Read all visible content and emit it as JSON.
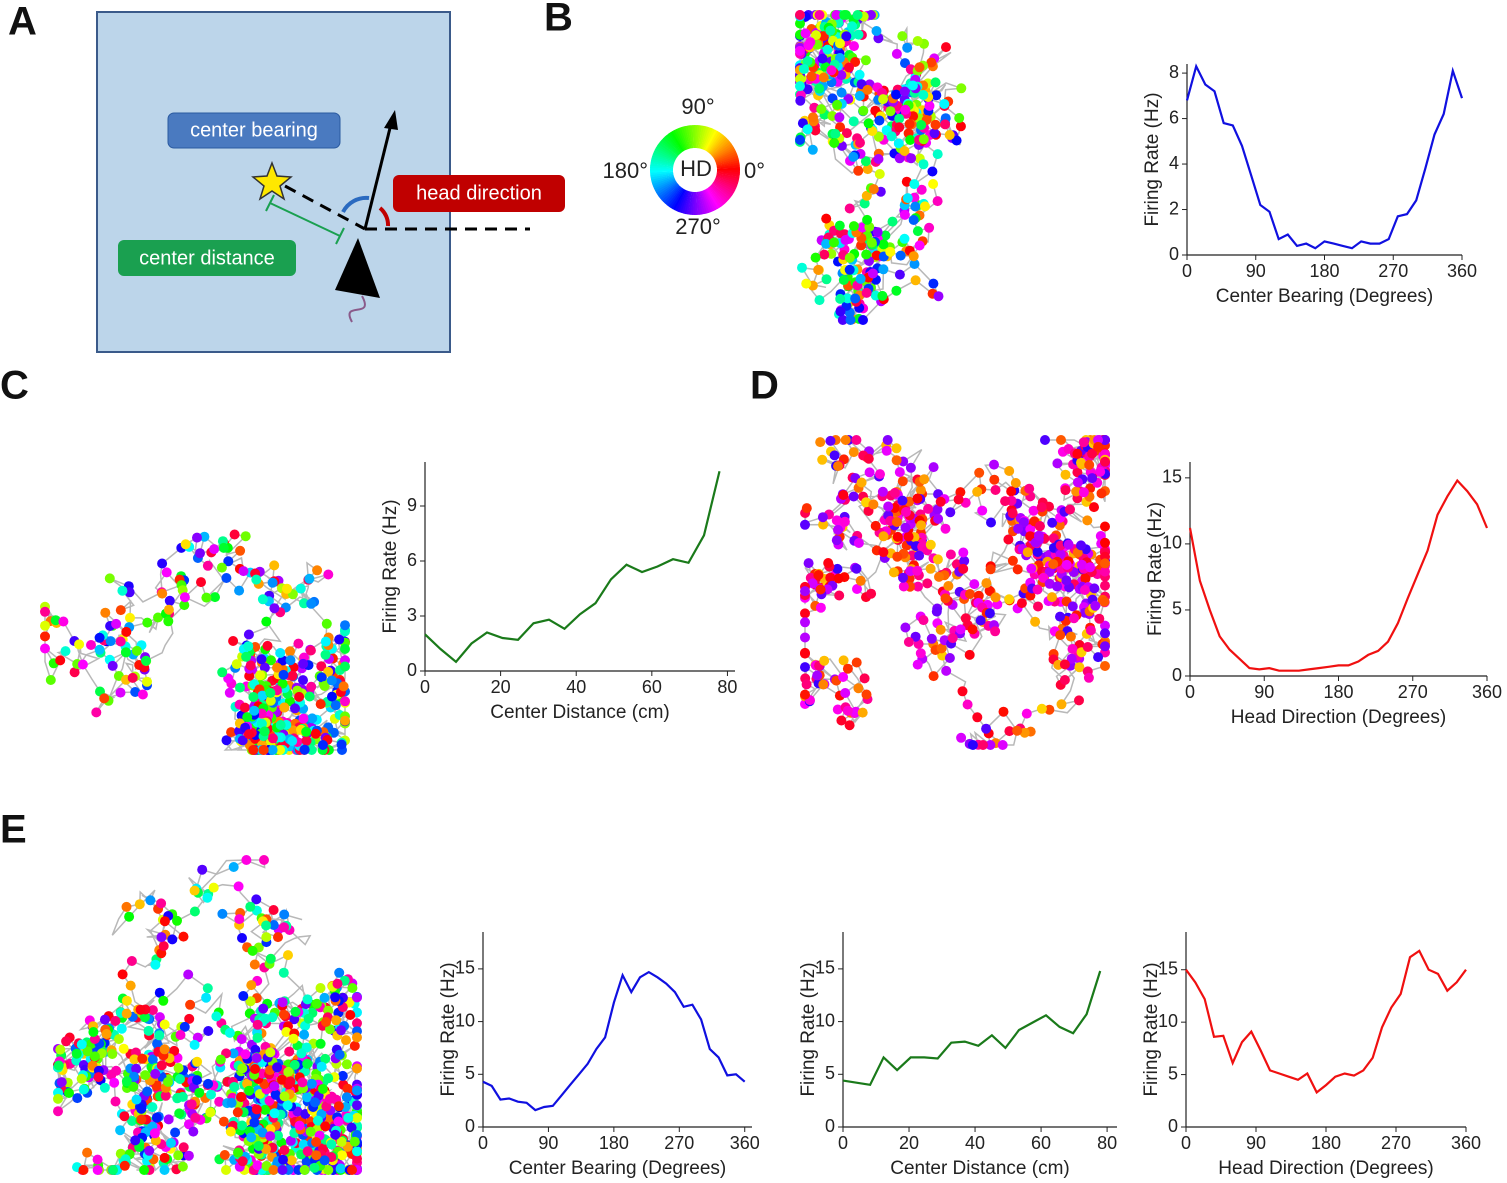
{
  "panel_labels": [
    "A",
    "B",
    "C",
    "D",
    "E"
  ],
  "diagram": {
    "center_bearing": "center bearing",
    "head_direction": "head direction",
    "center_distance": "center distance"
  },
  "hd_wheel": {
    "center": "HD",
    "label_90": "90°",
    "label_180": "180°",
    "label_0": "0°",
    "label_270": "270°"
  },
  "chart_data": [
    {
      "type": "line",
      "xlabel": "Center Bearing (Degrees)",
      "ylabel": "Firing Rate (Hz)",
      "color": "#1010e0",
      "x": [
        0,
        12,
        24,
        36,
        48,
        60,
        72,
        84,
        96,
        108,
        120,
        132,
        144,
        156,
        168,
        180,
        192,
        204,
        216,
        228,
        240,
        252,
        264,
        276,
        288,
        300,
        312,
        324,
        336,
        348,
        360
      ],
      "values": [
        6.8,
        8.3,
        7.5,
        7.2,
        5.8,
        5.7,
        4.8,
        3.5,
        2.2,
        1.9,
        0.7,
        0.9,
        0.4,
        0.5,
        0.3,
        0.6,
        0.5,
        0.4,
        0.3,
        0.6,
        0.5,
        0.5,
        0.7,
        1.7,
        1.8,
        2.4,
        3.8,
        5.3,
        6.2,
        8.1,
        6.9
      ],
      "xlim": [
        0,
        360
      ],
      "ylim": [
        0,
        8.4
      ],
      "xticks": [
        0,
        90,
        180,
        270,
        360
      ],
      "yticks": [
        0,
        2,
        4,
        6,
        8
      ]
    },
    {
      "type": "line",
      "xlabel": "Center Distance (cm)",
      "ylabel": "Firing Rate (Hz)",
      "color": "#1a7a1a",
      "x": [
        0,
        4.1,
        8.2,
        12.3,
        16.4,
        20.5,
        24.6,
        28.7,
        32.8,
        36.9,
        41,
        45.1,
        49.2,
        53.3,
        57.4,
        61.5,
        65.6,
        69.7,
        73.8,
        77.9
      ],
      "values": [
        2.0,
        1.2,
        0.5,
        1.5,
        2.1,
        1.8,
        1.7,
        2.6,
        2.8,
        2.3,
        3.1,
        3.7,
        5.0,
        5.8,
        5.4,
        5.7,
        6.1,
        5.9,
        7.4,
        10.9
      ],
      "xlim": [
        0,
        82
      ],
      "ylim": [
        0,
        11.4
      ],
      "xticks": [
        0,
        20,
        40,
        60,
        80
      ],
      "yticks": [
        0,
        3,
        6,
        9
      ]
    },
    {
      "type": "line",
      "xlabel": "Head Direction (Degrees)",
      "ylabel": "Firing Rate (Hz)",
      "color": "#f01010",
      "x": [
        0,
        12,
        24,
        36,
        48,
        60,
        72,
        84,
        96,
        108,
        120,
        132,
        144,
        156,
        168,
        180,
        192,
        204,
        216,
        228,
        240,
        252,
        264,
        276,
        288,
        300,
        312,
        324,
        336,
        348,
        360
      ],
      "values": [
        11.2,
        7.2,
        5,
        3,
        2,
        1.3,
        0.6,
        0.5,
        0.6,
        0.4,
        0.4,
        0.4,
        0.5,
        0.6,
        0.7,
        0.8,
        0.8,
        1.1,
        1.6,
        1.9,
        2.6,
        4,
        5.9,
        7.7,
        9.5,
        12.2,
        13.6,
        14.8,
        14,
        13,
        11.2
      ],
      "xlim": [
        0,
        360
      ],
      "ylim": [
        0,
        16.2
      ],
      "xticks": [
        0,
        90,
        180,
        270,
        360
      ],
      "yticks": [
        0,
        5,
        10,
        15
      ]
    },
    {
      "type": "line",
      "xlabel": "Center Bearing (Degrees)",
      "ylabel": "Firing Rate (Hz)",
      "color": "#1010e0",
      "x": [
        0,
        12,
        24,
        36,
        48,
        60,
        72,
        84,
        96,
        108,
        120,
        132,
        144,
        156,
        168,
        180,
        192,
        204,
        216,
        228,
        240,
        252,
        264,
        276,
        288,
        300,
        312,
        324,
        336,
        348,
        360
      ],
      "values": [
        4.3,
        3.9,
        2.6,
        2.7,
        2.4,
        2.3,
        1.6,
        1.9,
        2.0,
        3.0,
        4.0,
        5,
        6,
        7.4,
        8.5,
        11.8,
        14.4,
        12.8,
        14.2,
        14.7,
        14.2,
        13.6,
        12.8,
        11.4,
        11.6,
        10.2,
        7.4,
        6.6,
        4.9,
        5.0,
        4.3
      ],
      "xlim": [
        0,
        370
      ],
      "ylim": [
        0,
        18.5
      ],
      "xticks": [
        0,
        90,
        180,
        270,
        360
      ],
      "yticks": [
        0,
        5,
        10,
        15
      ]
    },
    {
      "type": "line",
      "xlabel": "Center Distance (cm)",
      "ylabel": "Firing Rate (Hz)",
      "color": "#1a7a1a",
      "x": [
        0,
        4.1,
        8.2,
        12.3,
        16.4,
        20.5,
        24.6,
        28.7,
        32.8,
        36.9,
        41,
        45.1,
        49.2,
        53.3,
        57.4,
        61.5,
        65.6,
        69.7,
        73.8,
        77.9
      ],
      "values": [
        4.4,
        4.2,
        4.0,
        6.6,
        5.4,
        6.6,
        6.6,
        6.5,
        8.0,
        8.1,
        7.7,
        8.7,
        7.5,
        9.2,
        9.9,
        10.6,
        9.5,
        8.9,
        10.7,
        14.8
      ],
      "xlim": [
        0,
        83
      ],
      "ylim": [
        0,
        18.5
      ],
      "xticks": [
        0,
        20,
        40,
        60,
        80
      ],
      "yticks": [
        0,
        5,
        10,
        15
      ]
    },
    {
      "type": "line",
      "xlabel": "Head Direction (Degrees)",
      "ylabel": "Firing Rate (Hz)",
      "color": "#f01010",
      "x": [
        0,
        12,
        24,
        36,
        48,
        60,
        72,
        84,
        96,
        108,
        120,
        132,
        144,
        156,
        168,
        180,
        192,
        204,
        216,
        228,
        240,
        252,
        264,
        276,
        288,
        300,
        312,
        324,
        336,
        348,
        360
      ],
      "values": [
        15,
        13.8,
        12.2,
        8.6,
        8.7,
        6.1,
        8.1,
        9.1,
        7.3,
        5.4,
        5.1,
        4.8,
        4.5,
        5.1,
        3.3,
        4,
        4.8,
        5.1,
        4.9,
        5.4,
        6.6,
        9.5,
        11.4,
        12.7,
        16.2,
        16.8,
        15.0,
        14.6,
        13.0,
        13.8,
        15.0
      ],
      "xlim": [
        0,
        360
      ],
      "ylim": [
        0,
        18.6
      ],
      "xticks": [
        0,
        90,
        180,
        270,
        360
      ],
      "yticks": [
        0,
        5,
        10,
        15
      ]
    }
  ]
}
